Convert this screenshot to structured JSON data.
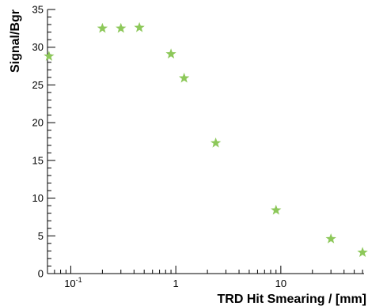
{
  "chart_data": {
    "type": "scatter",
    "title": "",
    "xlabel": "TRD Hit Smearing / [mm]",
    "ylabel": "Signal/Bgr",
    "xscale": "log",
    "xlim": [
      0.06,
      62
    ],
    "ylim": [
      0,
      35
    ],
    "grid": false,
    "marker": "star",
    "marker_color": "#8dc85a",
    "x_tick_labels": [
      {
        "value": 0.1,
        "base": "10",
        "exp": "-1"
      },
      {
        "value": 1,
        "base": "1",
        "exp": ""
      },
      {
        "value": 10,
        "base": "10",
        "exp": ""
      }
    ],
    "y_ticks": [
      0,
      5,
      10,
      15,
      20,
      25,
      30,
      35
    ],
    "series": [
      {
        "x": [
          0.062,
          0.2,
          0.3,
          0.45,
          0.9,
          1.2,
          2.4,
          9,
          30,
          60
        ],
        "y": [
          28.8,
          32.5,
          32.5,
          32.6,
          29.1,
          25.9,
          17.3,
          8.4,
          4.6,
          2.8
        ]
      }
    ]
  }
}
